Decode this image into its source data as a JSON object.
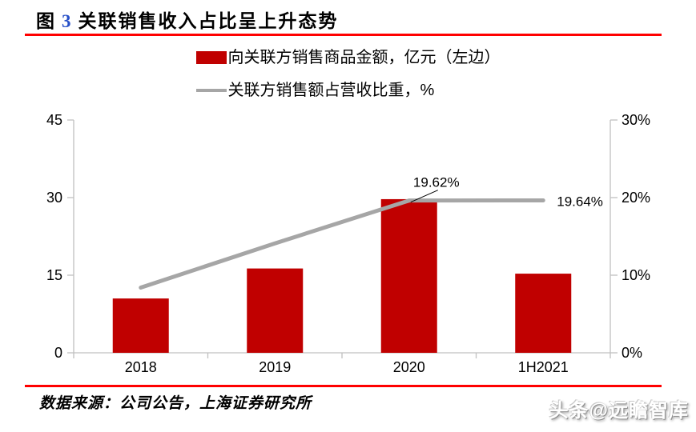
{
  "title": {
    "label": "图",
    "number": "3",
    "text": "关联销售收入占比呈上升态势"
  },
  "chart_data": {
    "type": "combo-bar-line",
    "categories": [
      "2018",
      "2019",
      "2020",
      "1H2021"
    ],
    "series": [
      {
        "name": "向关联方销售商品金额，亿元（左边）",
        "type": "bar",
        "axis": "left",
        "color": "#c00000",
        "values": [
          10.5,
          16.3,
          29.7,
          15.3
        ]
      },
      {
        "name": "关联方销售额占营收比重，%",
        "type": "line",
        "axis": "right",
        "color": "#a6a6a6",
        "values": [
          8.4,
          14.1,
          19.62,
          19.64
        ]
      }
    ],
    "left_axis": {
      "min": 0,
      "max": 45,
      "tick_values": [
        0,
        15,
        30,
        45
      ],
      "tick_labels": [
        "0",
        "15",
        "30",
        "45"
      ]
    },
    "right_axis": {
      "min": 0,
      "max": 30,
      "tick_values": [
        0,
        10,
        20,
        30
      ],
      "tick_labels": [
        "0%",
        "10%",
        "20%",
        "30%"
      ]
    },
    "annotations": [
      {
        "text": "19.62%",
        "index": 2,
        "placement": "above"
      },
      {
        "text": "19.64%",
        "index": 3,
        "placement": "right"
      }
    ],
    "grid": false,
    "legend_position": "top"
  },
  "footer": {
    "source": "数据来源：公司公告，上海证券研究所",
    "watermark": "头条@远瞻智库"
  },
  "colors": {
    "bar_red": "#c00000",
    "line_gray": "#a6a6a6",
    "rule_red": "#ff0000",
    "axis_gray": "#c0c0c0",
    "figure_number_blue": "#2750c8",
    "text_black": "#000000"
  }
}
